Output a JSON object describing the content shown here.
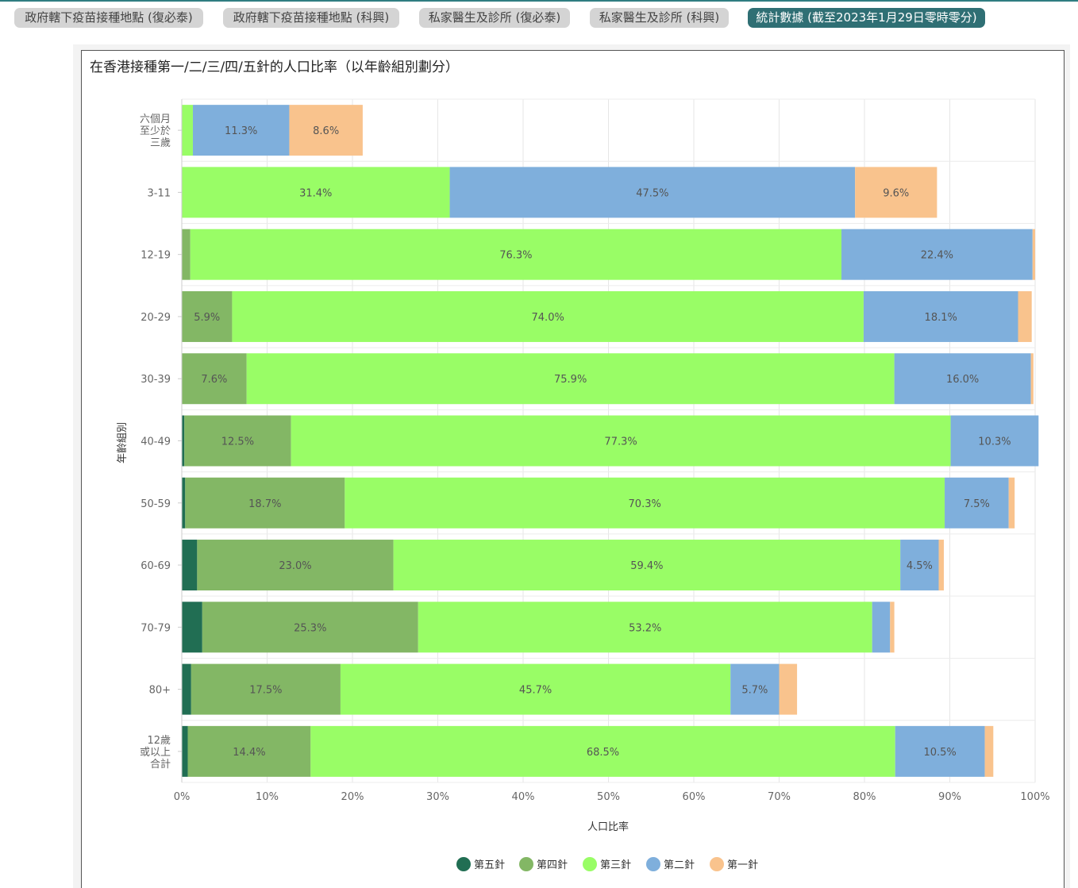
{
  "tabs": [
    {
      "label": "政府轄下疫苗接種地點 (復必泰)",
      "active": false
    },
    {
      "label": "政府轄下疫苗接種地點 (科興)",
      "active": false
    },
    {
      "label": "私家醫生及診所 (復必泰)",
      "active": false
    },
    {
      "label": "私家醫生及診所 (科興)",
      "active": false
    },
    {
      "label": "統計數據 (截至2023年1月29日零時零分)",
      "active": true
    }
  ],
  "colors": {
    "accent": "#2f6f74",
    "tab_inactive": "#d4d4d4"
  },
  "chart_data": {
    "type": "bar",
    "orientation": "horizontal",
    "stacked": true,
    "title": "在香港接種第一/二/三/四/五針的人口比率（以年齡組別劃分）",
    "xlabel": "人口比率",
    "ylabel": "年齡組別",
    "xlim": [
      0,
      100
    ],
    "x_ticks": [
      "0%",
      "10%",
      "20%",
      "30%",
      "40%",
      "50%",
      "60%",
      "70%",
      "80%",
      "90%",
      "100%"
    ],
    "grid": true,
    "legend_position": "bottom",
    "categories": [
      [
        "六個月",
        "至少於",
        "三歲"
      ],
      [
        "3-11"
      ],
      [
        "12-19"
      ],
      [
        "20-29"
      ],
      [
        "30-39"
      ],
      [
        "40-49"
      ],
      [
        "50-59"
      ],
      [
        "60-69"
      ],
      [
        "70-79"
      ],
      [
        "80+"
      ],
      [
        "12歲",
        "或以上",
        "合計"
      ]
    ],
    "series": [
      {
        "name": "第五針",
        "color": "#216e53",
        "values": [
          0,
          0,
          0,
          0,
          0,
          0.3,
          0.4,
          1.8,
          2.4,
          1.1,
          0.7
        ]
      },
      {
        "name": "第四針",
        "color": "#83b765",
        "values": [
          0,
          0,
          1.0,
          5.9,
          7.6,
          12.5,
          18.7,
          23.0,
          25.3,
          17.5,
          14.4
        ]
      },
      {
        "name": "第三針",
        "color": "#99fd66",
        "values": [
          1.3,
          31.4,
          76.3,
          74.0,
          75.9,
          77.3,
          70.3,
          59.4,
          53.2,
          45.7,
          68.5
        ]
      },
      {
        "name": "第二針",
        "color": "#7fafdc",
        "values": [
          11.3,
          47.5,
          22.4,
          18.1,
          16.0,
          10.3,
          7.5,
          4.5,
          2.1,
          5.7,
          10.5
        ]
      },
      {
        "name": "第一針",
        "color": "#f9c38d",
        "values": [
          8.6,
          9.6,
          0.3,
          1.6,
          0.3,
          0,
          0.7,
          0.6,
          0.5,
          2.1,
          1.0
        ]
      }
    ],
    "data_labels": [
      [
        "",
        "",
        "",
        "11.3%",
        "8.6%"
      ],
      [
        "",
        "",
        "31.4%",
        "47.5%",
        "9.6%"
      ],
      [
        "",
        "",
        "76.3%",
        "22.4%",
        ""
      ],
      [
        "",
        "5.9%",
        "74.0%",
        "18.1%",
        ""
      ],
      [
        "",
        "7.6%",
        "75.9%",
        "16.0%",
        ""
      ],
      [
        "",
        "12.5%",
        "77.3%",
        "10.3%",
        ""
      ],
      [
        "",
        "18.7%",
        "70.3%",
        "7.5%",
        ""
      ],
      [
        "",
        "23.0%",
        "59.4%",
        "4.5%",
        ""
      ],
      [
        "",
        "25.3%",
        "53.2%",
        "",
        ""
      ],
      [
        "",
        "17.5%",
        "45.7%",
        "5.7%",
        ""
      ],
      [
        "",
        "14.4%",
        "68.5%",
        "10.5%",
        ""
      ]
    ]
  }
}
